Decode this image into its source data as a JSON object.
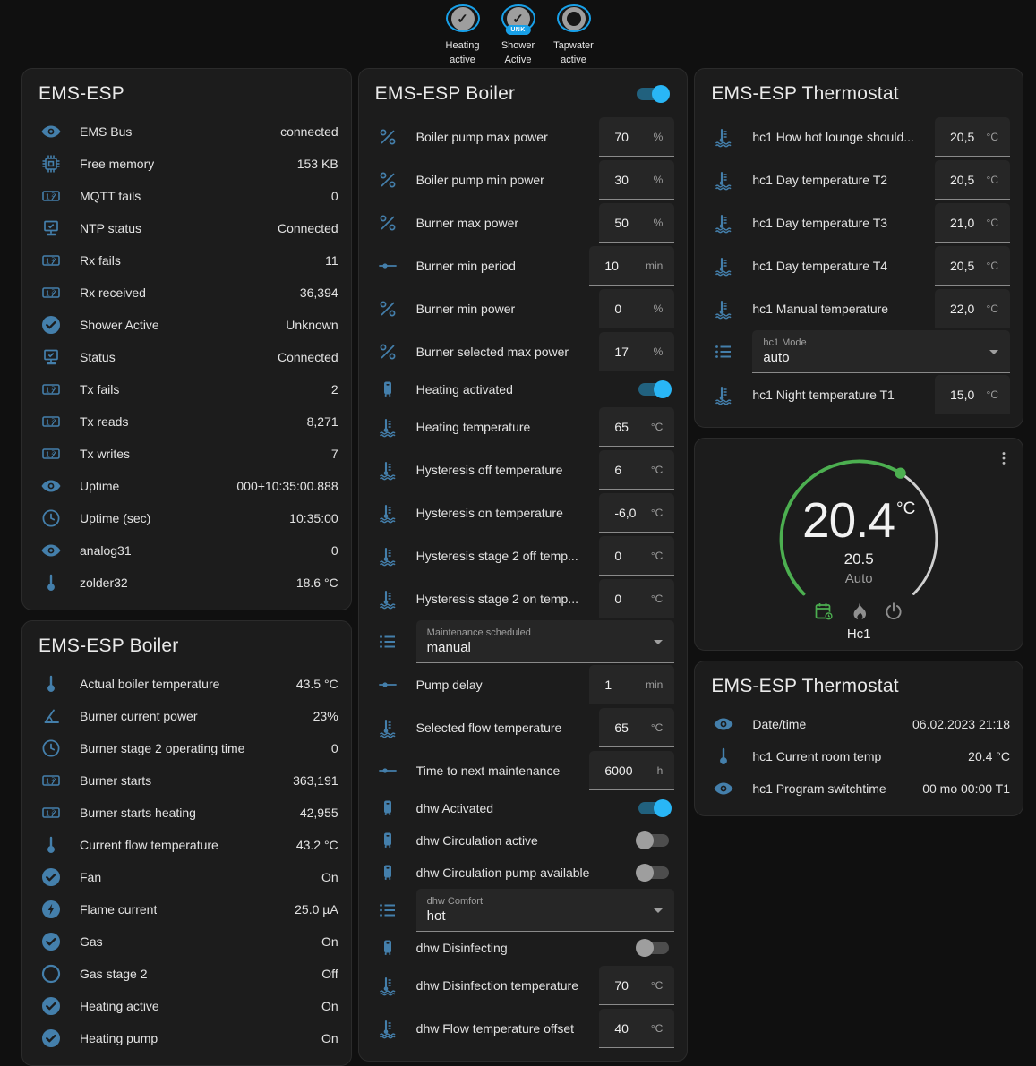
{
  "colors": {
    "accent": "#29b6f6",
    "icon": "#447fab",
    "ring": "#18a0e8",
    "green": "#4caf50"
  },
  "badges": [
    {
      "label": "Heating active",
      "state": "on"
    },
    {
      "label": "Shower Active",
      "state": "on",
      "chip": "UNK"
    },
    {
      "label": "Tapwater active",
      "state": "off"
    }
  ],
  "left": {
    "cards": [
      {
        "title": "EMS-ESP",
        "rows": [
          {
            "icon": "eye",
            "label": "EMS Bus",
            "value": "connected"
          },
          {
            "icon": "chip",
            "label": "Free memory",
            "value": "153 KB"
          },
          {
            "icon": "counter",
            "label": "MQTT fails",
            "value": "0"
          },
          {
            "icon": "network",
            "label": "NTP status",
            "value": "Connected"
          },
          {
            "icon": "counter",
            "label": "Rx fails",
            "value": "11"
          },
          {
            "icon": "counter",
            "label": "Rx received",
            "value": "36,394"
          },
          {
            "icon": "check-circle",
            "label": "Shower Active",
            "value": "Unknown"
          },
          {
            "icon": "network",
            "label": "Status",
            "value": "Connected"
          },
          {
            "icon": "counter",
            "label": "Tx fails",
            "value": "2"
          },
          {
            "icon": "counter",
            "label": "Tx reads",
            "value": "8,271"
          },
          {
            "icon": "counter",
            "label": "Tx writes",
            "value": "7"
          },
          {
            "icon": "eye",
            "label": "Uptime",
            "value": "000+10:35:00.888"
          },
          {
            "icon": "clock",
            "label": "Uptime (sec)",
            "value": "10:35:00"
          },
          {
            "icon": "eye",
            "label": "analog31",
            "value": "0"
          },
          {
            "icon": "thermometer",
            "label": "zolder32",
            "value": "18.6 °C"
          }
        ]
      },
      {
        "title": "EMS-ESP Boiler",
        "rows": [
          {
            "icon": "thermometer",
            "label": "Actual boiler temperature",
            "value": "43.5 °C"
          },
          {
            "icon": "angle",
            "label": "Burner current power",
            "value": "23%"
          },
          {
            "icon": "clock",
            "label": "Burner stage 2 operating time",
            "value": "0"
          },
          {
            "icon": "counter",
            "label": "Burner starts",
            "value": "363,191"
          },
          {
            "icon": "counter",
            "label": "Burner starts heating",
            "value": "42,955"
          },
          {
            "icon": "thermometer",
            "label": "Current flow temperature",
            "value": "43.2 °C"
          },
          {
            "icon": "check-circle",
            "label": "Fan",
            "value": "On"
          },
          {
            "icon": "flash-circle",
            "label": "Flame current",
            "value": "25.0 µA"
          },
          {
            "icon": "check-circle",
            "label": "Gas",
            "value": "On"
          },
          {
            "icon": "circle-outline",
            "label": "Gas stage 2",
            "value": "Off"
          },
          {
            "icon": "check-circle",
            "label": "Heating active",
            "value": "On"
          },
          {
            "icon": "check-circle",
            "label": "Heating pump",
            "value": "On"
          }
        ]
      }
    ]
  },
  "middle": {
    "card": {
      "title": "EMS-ESP Boiler",
      "header_toggle": "on",
      "rows": [
        {
          "type": "number",
          "icon": "percent",
          "label": "Boiler pump max power",
          "value": "70",
          "unit": "%"
        },
        {
          "type": "number",
          "icon": "percent",
          "label": "Boiler pump min power",
          "value": "30",
          "unit": "%"
        },
        {
          "type": "number",
          "icon": "percent",
          "label": "Burner max power",
          "value": "50",
          "unit": "%"
        },
        {
          "type": "number",
          "icon": "slider",
          "label": "Burner min period",
          "value": "10",
          "unit": "min"
        },
        {
          "type": "number",
          "icon": "percent",
          "label": "Burner min power",
          "value": "0",
          "unit": "%"
        },
        {
          "type": "number",
          "icon": "percent",
          "label": "Burner selected max power",
          "value": "17",
          "unit": "%"
        },
        {
          "type": "toggle",
          "icon": "boiler",
          "label": "Heating activated",
          "on": true
        },
        {
          "type": "number",
          "icon": "coolant",
          "label": "Heating temperature",
          "value": "65",
          "unit": "°C"
        },
        {
          "type": "number",
          "icon": "coolant",
          "label": "Hysteresis off temperature",
          "value": "6",
          "unit": "°C"
        },
        {
          "type": "number",
          "icon": "coolant",
          "label": "Hysteresis on temperature",
          "value": "-6,0",
          "unit": "°C"
        },
        {
          "type": "number",
          "icon": "coolant",
          "label": "Hysteresis stage 2 off temp...",
          "value": "0",
          "unit": "°C"
        },
        {
          "type": "number",
          "icon": "coolant",
          "label": "Hysteresis stage 2 on temp...",
          "value": "0",
          "unit": "°C"
        },
        {
          "type": "select",
          "icon": "list",
          "label": "Maintenance scheduled",
          "value": "manual"
        },
        {
          "type": "number",
          "icon": "slider",
          "label": "Pump delay",
          "value": "1",
          "unit": "min"
        },
        {
          "type": "number",
          "icon": "coolant",
          "label": "Selected flow temperature",
          "value": "65",
          "unit": "°C"
        },
        {
          "type": "number",
          "icon": "slider",
          "label": "Time to next maintenance",
          "value": "6000",
          "unit": "h"
        },
        {
          "type": "toggle",
          "icon": "boiler",
          "label": "dhw Activated",
          "on": true
        },
        {
          "type": "toggle",
          "icon": "boiler",
          "label": "dhw Circulation active",
          "on": false
        },
        {
          "type": "toggle",
          "icon": "boiler",
          "label": "dhw Circulation pump available",
          "on": false
        },
        {
          "type": "select",
          "icon": "list",
          "label": "dhw Comfort",
          "value": "hot"
        },
        {
          "type": "toggle",
          "icon": "boiler",
          "label": "dhw Disinfecting",
          "on": false
        },
        {
          "type": "number",
          "icon": "coolant",
          "label": "dhw Disinfection temperature",
          "value": "70",
          "unit": "°C"
        },
        {
          "type": "number",
          "icon": "coolant",
          "label": "dhw Flow temperature offset",
          "value": "40",
          "unit": "°C"
        }
      ]
    }
  },
  "right": {
    "controls": {
      "title": "EMS-ESP Thermostat",
      "rows": [
        {
          "type": "number",
          "icon": "coolant",
          "label": "hc1 How hot lounge should...",
          "value": "20,5",
          "unit": "°C"
        },
        {
          "type": "number",
          "icon": "coolant",
          "label": "hc1 Day temperature T2",
          "value": "20,5",
          "unit": "°C"
        },
        {
          "type": "number",
          "icon": "coolant",
          "label": "hc1 Day temperature T3",
          "value": "21,0",
          "unit": "°C"
        },
        {
          "type": "number",
          "icon": "coolant",
          "label": "hc1 Day temperature T4",
          "value": "20,5",
          "unit": "°C"
        },
        {
          "type": "number",
          "icon": "coolant",
          "label": "hc1 Manual temperature",
          "value": "22,0",
          "unit": "°C"
        },
        {
          "type": "select",
          "icon": "list",
          "label": "hc1 Mode",
          "value": "auto"
        },
        {
          "type": "number",
          "icon": "coolant",
          "label": "hc1 Night temperature T1",
          "value": "15,0",
          "unit": "°C"
        }
      ]
    },
    "dial": {
      "current": "20.4",
      "unit": "°C",
      "setpoint": "20.5",
      "mode": "Auto",
      "zone": "Hc1",
      "icons": [
        "calendar-clock",
        "fire",
        "power"
      ],
      "active_icon": 0
    },
    "sensors": {
      "title": "EMS-ESP Thermostat",
      "rows": [
        {
          "icon": "eye",
          "label": "Date/time",
          "value": "06.02.2023 21:18"
        },
        {
          "icon": "thermometer",
          "label": "hc1 Current room temp",
          "value": "20.4 °C"
        },
        {
          "icon": "eye",
          "label": "hc1 Program switchtime",
          "value": "00 mo 00:00 T1"
        }
      ]
    }
  }
}
